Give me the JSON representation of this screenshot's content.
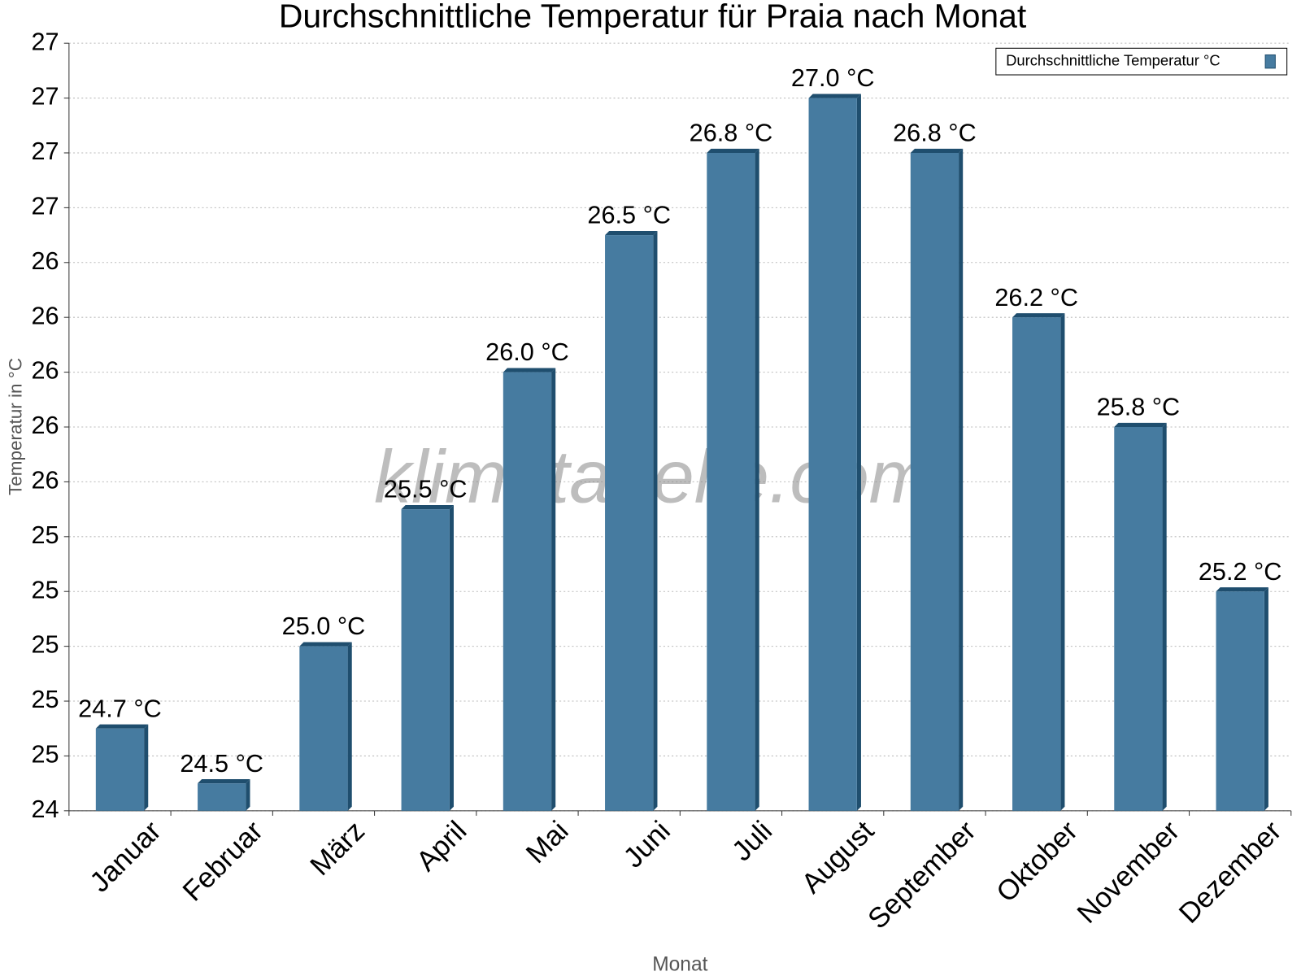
{
  "chart_data": {
    "type": "bar",
    "title": "Durchschnittliche Temperatur für Praia nach Monat",
    "x_label": "Monat",
    "y_label": "Temperatur in °C",
    "watermark": "klimatabelle.com",
    "categories": [
      "Januar",
      "Februar",
      "März",
      "April",
      "Mai",
      "Juni",
      "Juli",
      "August",
      "September",
      "Oktober",
      "November",
      "Dezember"
    ],
    "series": [
      {
        "name": "Durchschnittliche Temperatur °C",
        "color": "#467ba0",
        "values": [
          24.7,
          24.5,
          25.0,
          25.5,
          26.0,
          26.5,
          26.8,
          27.0,
          26.8,
          26.2,
          25.8,
          25.2
        ],
        "value_labels": [
          "24.7 °C",
          "24.5 °C",
          "25.0 °C",
          "25.5 °C",
          "26.0 °C",
          "26.5 °C",
          "26.8 °C",
          "27.0 °C",
          "26.8 °C",
          "26.2 °C",
          "25.8 °C",
          "25.2 °C"
        ]
      }
    ],
    "ylim": [
      24.4,
      27.2
    ],
    "yticks": [
      {
        "value": 24.4,
        "label": "24"
      },
      {
        "value": 24.6,
        "label": "25"
      },
      {
        "value": 24.8,
        "label": "25"
      },
      {
        "value": 25.0,
        "label": "25"
      },
      {
        "value": 25.2,
        "label": "25"
      },
      {
        "value": 25.4,
        "label": "25"
      },
      {
        "value": 25.6,
        "label": "26"
      },
      {
        "value": 25.8,
        "label": "26"
      },
      {
        "value": 26.0,
        "label": "26"
      },
      {
        "value": 26.2,
        "label": "26"
      },
      {
        "value": 26.4,
        "label": "26"
      },
      {
        "value": 26.6,
        "label": "27"
      },
      {
        "value": 26.8,
        "label": "27"
      },
      {
        "value": 27.0,
        "label": "27"
      },
      {
        "value": 27.2,
        "label": "27"
      }
    ],
    "grid": true,
    "legend": "top-right"
  }
}
